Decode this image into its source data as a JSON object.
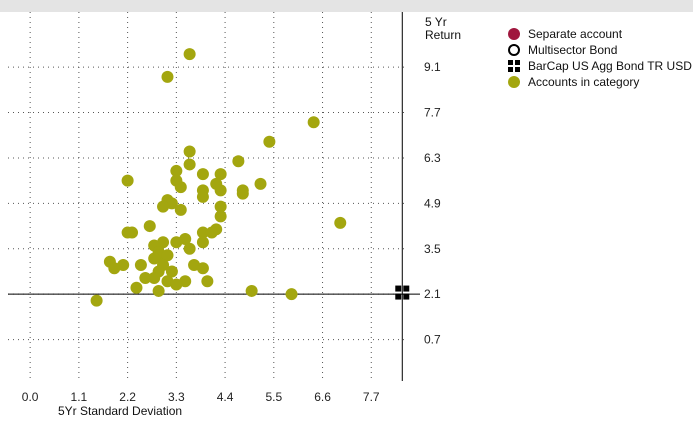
{
  "chart_data": {
    "type": "scatter",
    "xlabel": "5Yr Standard Deviation",
    "ylabel_line1": "5 Yr",
    "ylabel_line2": "Return",
    "x_ticks": [
      "0.0",
      "1.1",
      "2.2",
      "3.3",
      "4.4",
      "5.5",
      "6.6",
      "7.7"
    ],
    "y_ticks": [
      "9.1",
      "7.7",
      "6.3",
      "4.9",
      "3.5",
      "2.1",
      "0.7"
    ],
    "xlim": [
      -0.5,
      8.8
    ],
    "ylim": [
      -0.7,
      10.8
    ],
    "grid": true,
    "legend_position": "right",
    "reference_lines": {
      "x": 8.4,
      "y": 2.1
    },
    "series": [
      {
        "name": "Separate account",
        "marker": "filled-circle",
        "color": "#a0173e",
        "points": []
      },
      {
        "name": "Multisector Bond",
        "marker": "open-circle",
        "color": "#000000",
        "points": []
      },
      {
        "name": "BarCap US Agg Bond TR USD",
        "marker": "square",
        "color": "#000000",
        "points": [
          [
            8.4,
            2.15
          ]
        ]
      },
      {
        "name": "Accounts in category",
        "marker": "filled-circle",
        "color": "#a3a60f",
        "points": [
          [
            3.6,
            9.5
          ],
          [
            3.1,
            8.8
          ],
          [
            6.4,
            7.4
          ],
          [
            5.4,
            6.8
          ],
          [
            3.6,
            6.5
          ],
          [
            4.7,
            6.2
          ],
          [
            3.6,
            6.1
          ],
          [
            3.3,
            5.9
          ],
          [
            3.9,
            5.8
          ],
          [
            4.3,
            5.8
          ],
          [
            2.2,
            5.6
          ],
          [
            3.3,
            5.6
          ],
          [
            4.2,
            5.5
          ],
          [
            5.2,
            5.5
          ],
          [
            3.4,
            5.4
          ],
          [
            3.9,
            5.3
          ],
          [
            4.3,
            5.3
          ],
          [
            4.8,
            5.3
          ],
          [
            4.8,
            5.2
          ],
          [
            3.9,
            5.1
          ],
          [
            3.1,
            5.0
          ],
          [
            3.2,
            4.9
          ],
          [
            3.0,
            4.8
          ],
          [
            4.3,
            4.8
          ],
          [
            3.4,
            4.7
          ],
          [
            4.3,
            4.5
          ],
          [
            7.0,
            4.3
          ],
          [
            2.7,
            4.2
          ],
          [
            4.2,
            4.1
          ],
          [
            3.9,
            4.0
          ],
          [
            2.3,
            4.0
          ],
          [
            4.1,
            4.0
          ],
          [
            2.2,
            4.0
          ],
          [
            3.5,
            3.8
          ],
          [
            3.0,
            3.7
          ],
          [
            3.3,
            3.7
          ],
          [
            3.9,
            3.7
          ],
          [
            2.8,
            3.6
          ],
          [
            3.6,
            3.5
          ],
          [
            2.9,
            3.4
          ],
          [
            2.9,
            3.3
          ],
          [
            3.1,
            3.3
          ],
          [
            2.8,
            3.2
          ],
          [
            1.8,
            3.1
          ],
          [
            2.1,
            3.0
          ],
          [
            2.5,
            3.0
          ],
          [
            3.0,
            3.0
          ],
          [
            3.7,
            3.0
          ],
          [
            3.9,
            2.9
          ],
          [
            1.9,
            2.9
          ],
          [
            2.9,
            2.8
          ],
          [
            3.2,
            2.8
          ],
          [
            2.6,
            2.6
          ],
          [
            2.8,
            2.6
          ],
          [
            3.1,
            2.5
          ],
          [
            3.5,
            2.5
          ],
          [
            3.3,
            2.4
          ],
          [
            4.0,
            2.5
          ],
          [
            2.4,
            2.3
          ],
          [
            2.9,
            2.2
          ],
          [
            5.0,
            2.2
          ],
          [
            5.9,
            2.1
          ],
          [
            1.5,
            1.9
          ]
        ]
      }
    ]
  }
}
